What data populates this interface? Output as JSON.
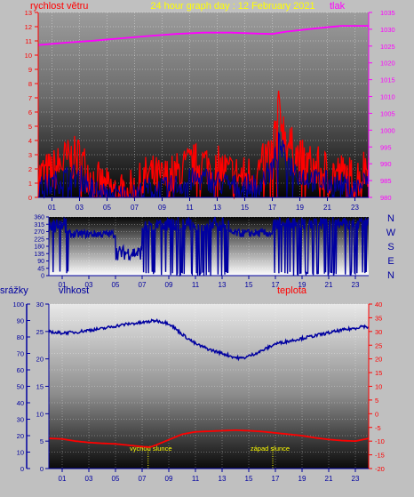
{
  "colors": {
    "background": "#c0c0c0",
    "wind": "#ff0000",
    "gust": "#0000a0",
    "pressure": "#ff00ff",
    "direction": "#0000a0",
    "humidity": "#0000a0",
    "temperature": "#ff0000",
    "title": "#ffff00",
    "axis_blue": "#0000a0",
    "axis_red": "#ff0000",
    "axis_magenta": "#ff00ff",
    "sun_label": "#ffff00"
  },
  "chart_data": [
    {
      "type": "line",
      "title": "24 hour graph day : 12 February 2021",
      "left_label": "rychlost větru",
      "right_label": "tlak",
      "x_ticks": [
        "01",
        "03",
        "05",
        "07",
        "09",
        "11",
        "13",
        "15",
        "17",
        "19",
        "21",
        "23"
      ],
      "x_range": [
        0,
        24
      ],
      "y_left_range": [
        0,
        13
      ],
      "y_left_ticks": [
        "0",
        "1",
        "2",
        "3",
        "4",
        "5",
        "6",
        "7",
        "8",
        "9",
        "10",
        "11",
        "12",
        "13"
      ],
      "y_right_range": [
        980,
        1035
      ],
      "y_right_ticks": [
        "980",
        "985",
        "990",
        "995",
        "1000",
        "1005",
        "1010",
        "1015",
        "1020",
        "1025",
        "1030",
        "1035"
      ],
      "series": [
        {
          "axis": "left",
          "style": "spiky",
          "points": [
            [
              0,
              1.5
            ],
            [
              1,
              1.8
            ],
            [
              2,
              2.6
            ],
            [
              3,
              2.8
            ],
            [
              4,
              1.2
            ],
            [
              5,
              0.5
            ],
            [
              6,
              0.3
            ],
            [
              7,
              0.4
            ],
            [
              7.5,
              1.0
            ],
            [
              8,
              1.6
            ],
            [
              9,
              1.2
            ],
            [
              10,
              1.6
            ],
            [
              11,
              2.2
            ],
            [
              12,
              2.4
            ],
            [
              13,
              2.1
            ],
            [
              14,
              1.6
            ],
            [
              15,
              1.4
            ],
            [
              16,
              1.8
            ],
            [
              17,
              3.4
            ],
            [
              17.5,
              6.2
            ],
            [
              18,
              4.0
            ],
            [
              19,
              2.6
            ],
            [
              20,
              2.1
            ],
            [
              21,
              1.8
            ],
            [
              22,
              1.6
            ],
            [
              23,
              1.2
            ],
            [
              24,
              2.4
            ]
          ],
          "noise": 1.6
        },
        {
          "axis": "left",
          "style": "spiky",
          "points": [
            [
              0,
              0.6
            ],
            [
              1,
              0.9
            ],
            [
              2,
              1.4
            ],
            [
              3,
              1.5
            ],
            [
              4,
              0.5
            ],
            [
              5,
              0.1
            ],
            [
              6,
              0.1
            ],
            [
              7,
              0.1
            ],
            [
              8,
              0.6
            ],
            [
              9,
              0.5
            ],
            [
              10,
              0.8
            ],
            [
              11,
              1.2
            ],
            [
              12,
              1.3
            ],
            [
              13,
              1.1
            ],
            [
              14,
              0.8
            ],
            [
              15,
              0.7
            ],
            [
              16,
              0.9
            ],
            [
              17,
              2.0
            ],
            [
              17.5,
              3.8
            ],
            [
              18,
              2.6
            ],
            [
              19,
              1.6
            ],
            [
              20,
              1.2
            ],
            [
              21,
              1.0
            ],
            [
              22,
              0.8
            ],
            [
              23,
              0.6
            ],
            [
              24,
              1.2
            ]
          ],
          "noise": 0.9
        },
        {
          "axis": "right",
          "style": "smooth",
          "points": [
            [
              0,
              1025.3
            ],
            [
              2,
              1026
            ],
            [
              4,
              1026.6
            ],
            [
              6,
              1027.3
            ],
            [
              8,
              1028
            ],
            [
              10,
              1028.6
            ],
            [
              12,
              1029
            ],
            [
              14,
              1029
            ],
            [
              16,
              1028.7
            ],
            [
              17,
              1028.6
            ],
            [
              18,
              1029.3
            ],
            [
              20,
              1030.2
            ],
            [
              22,
              1031
            ],
            [
              24,
              1031
            ]
          ]
        }
      ]
    },
    {
      "type": "scatter",
      "x_ticks": [
        "01",
        "03",
        "05",
        "07",
        "09",
        "11",
        "13",
        "15",
        "17",
        "19",
        "21",
        "23"
      ],
      "x_range": [
        0,
        24
      ],
      "y_range": [
        0,
        360
      ],
      "y_ticks": [
        "0",
        "45",
        "90",
        "135",
        "180",
        "225",
        "270",
        "315",
        "360"
      ],
      "compass": [
        "N",
        "W",
        "S",
        "E",
        "N"
      ],
      "series": [
        {
          "style": "direction",
          "segments": [
            {
              "from": 0,
              "to": 1.5,
              "center": 300,
              "spread": 45
            },
            {
              "from": 1.5,
              "to": 5,
              "center": 255,
              "spread": 25
            },
            {
              "from": 5,
              "to": 7,
              "center": 140,
              "spread": 45
            },
            {
              "from": 7,
              "to": 8.8,
              "center": 300,
              "spread": 35
            },
            {
              "from": 8.8,
              "to": 13.5,
              "center": 310,
              "spread": 40
            },
            {
              "from": 13.5,
              "to": 16.8,
              "center": 260,
              "spread": 25
            },
            {
              "from": 16.8,
              "to": 24,
              "center": 320,
              "spread": 35
            }
          ],
          "wrap_frequency": 0.22
        }
      ]
    },
    {
      "type": "line",
      "labels": [
        "srážky",
        "vlhkost",
        "teplota"
      ],
      "x_ticks": [
        "01",
        "03",
        "05",
        "07",
        "09",
        "11",
        "13",
        "15",
        "17",
        "19",
        "21",
        "23"
      ],
      "x_range": [
        0,
        24
      ],
      "y_rain_range": [
        0,
        100
      ],
      "y_rain_ticks": [
        "0",
        "10",
        "20",
        "30",
        "40",
        "50",
        "60",
        "70",
        "80",
        "90",
        "100"
      ],
      "y_humidity_range": [
        0,
        30
      ],
      "y_humidity_ticks": [
        "0",
        "5",
        "10",
        "15",
        "20",
        "25",
        "30"
      ],
      "y_temp_range": [
        -20,
        40
      ],
      "y_temp_ticks": [
        "-20",
        "-15",
        "-10",
        "-5",
        "0",
        "5",
        "10",
        "15",
        "20",
        "25",
        "30",
        "35",
        "40"
      ],
      "annotations": [
        {
          "x": 7.45,
          "label": "východ slunce"
        },
        {
          "x": 16.8,
          "label": "západ slunce"
        }
      ],
      "series": [
        {
          "style": "smooth_noisy",
          "axis": "temperature",
          "points": [
            [
              0,
              30.2
            ],
            [
              0.5,
              29.5
            ],
            [
              1,
              29.5
            ],
            [
              2,
              29.7
            ],
            [
              3,
              30.5
            ],
            [
              4,
              31
            ],
            [
              5,
              32
            ],
            [
              6,
              32.8
            ],
            [
              7,
              33.2
            ],
            [
              8,
              34
            ],
            [
              9,
              33
            ],
            [
              10,
              29
            ],
            [
              11,
              25.5
            ],
            [
              12,
              23.5
            ],
            [
              13,
              22
            ],
            [
              14,
              20.5
            ],
            [
              14.5,
              20.2
            ],
            [
              15,
              21
            ],
            [
              16,
              23
            ],
            [
              17,
              25.5
            ],
            [
              18,
              26.5
            ],
            [
              19,
              27.5
            ],
            [
              20,
              28.5
            ],
            [
              21,
              29.5
            ],
            [
              22,
              30.5
            ],
            [
              23,
              31.2
            ],
            [
              23.5,
              32
            ],
            [
              24,
              31.5
            ]
          ]
        },
        {
          "style": "smooth",
          "axis": "temperature",
          "points": [
            [
              0,
              -9
            ],
            [
              1,
              -9.2
            ],
            [
              2,
              -10
            ],
            [
              3,
              -10.5
            ],
            [
              4,
              -10.8
            ],
            [
              5,
              -11
            ],
            [
              6,
              -11.5
            ],
            [
              7,
              -12
            ],
            [
              7.6,
              -12.2
            ],
            [
              8,
              -11.5
            ],
            [
              9,
              -9.5
            ],
            [
              10,
              -7.5
            ],
            [
              11,
              -6.6
            ],
            [
              12,
              -6.4
            ],
            [
              13,
              -6.2
            ],
            [
              14,
              -6
            ],
            [
              15,
              -6.2
            ],
            [
              16,
              -6.5
            ],
            [
              17,
              -7
            ],
            [
              18,
              -7.5
            ],
            [
              19,
              -8
            ],
            [
              20,
              -8.8
            ],
            [
              21,
              -9.4
            ],
            [
              22,
              -9.8
            ],
            [
              23,
              -10
            ],
            [
              24,
              -9
            ]
          ]
        }
      ]
    }
  ]
}
